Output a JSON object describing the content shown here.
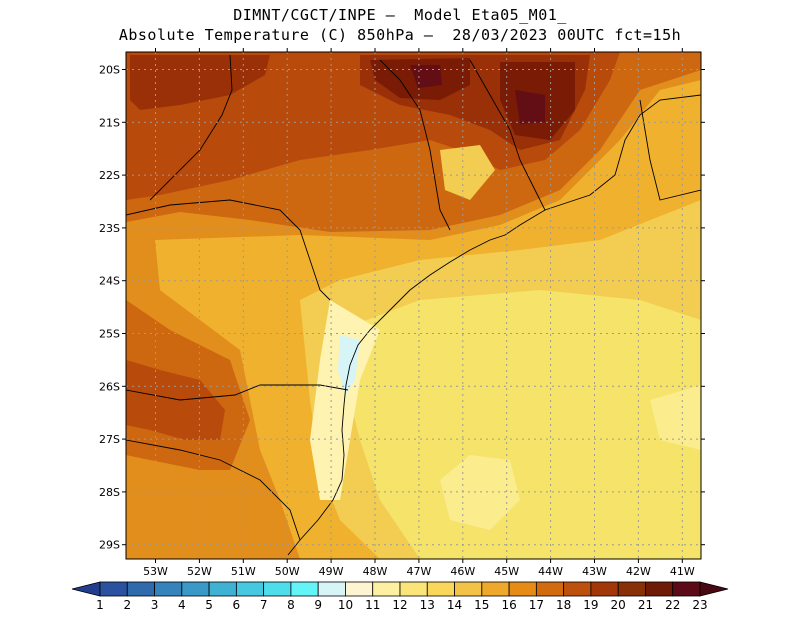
{
  "header": {
    "line1": "DIMNT/CGCT/INPE –  Model Eta05_M01_",
    "line2": "Absolute Temperature (C) 850hPa –  28/03/2023 00UTC fct=15h"
  },
  "map": {
    "lat_labels": [
      "20S",
      "21S",
      "22S",
      "23S",
      "24S",
      "25S",
      "26S",
      "27S",
      "28S",
      "29S"
    ],
    "lon_labels": [
      "53W",
      "52W",
      "51W",
      "50W",
      "49W",
      "48W",
      "47W",
      "46W",
      "45W",
      "44W",
      "43W",
      "42W",
      "41W"
    ],
    "field_colors": [
      "#f6e36a",
      "#f3cd52",
      "#f0b12f",
      "#e28e1d",
      "#cd6710",
      "#b84a0c",
      "#9a3008",
      "#7a1b06",
      "#620e14"
    ]
  },
  "colorbar": {
    "labels": [
      "1",
      "2",
      "3",
      "4",
      "5",
      "6",
      "7",
      "8",
      "9",
      "10",
      "11",
      "12",
      "13",
      "14",
      "15",
      "16",
      "17",
      "18",
      "19",
      "20",
      "21",
      "22",
      "23"
    ],
    "colors": [
      "#233d8e",
      "#2a52a0",
      "#2f6aad",
      "#3583bb",
      "#3a99c6",
      "#3fb2d3",
      "#46c9e0",
      "#4dddeb",
      "#63f4f7",
      "#d7f5f7",
      "#fdf4d2",
      "#fef0a2",
      "#fbe57a",
      "#f8d75a",
      "#f3c347",
      "#eea92c",
      "#e58b16",
      "#d26b10",
      "#bd500c",
      "#a2380a",
      "#883008",
      "#6f1907",
      "#5c0a15",
      "#4a0812"
    ]
  }
}
